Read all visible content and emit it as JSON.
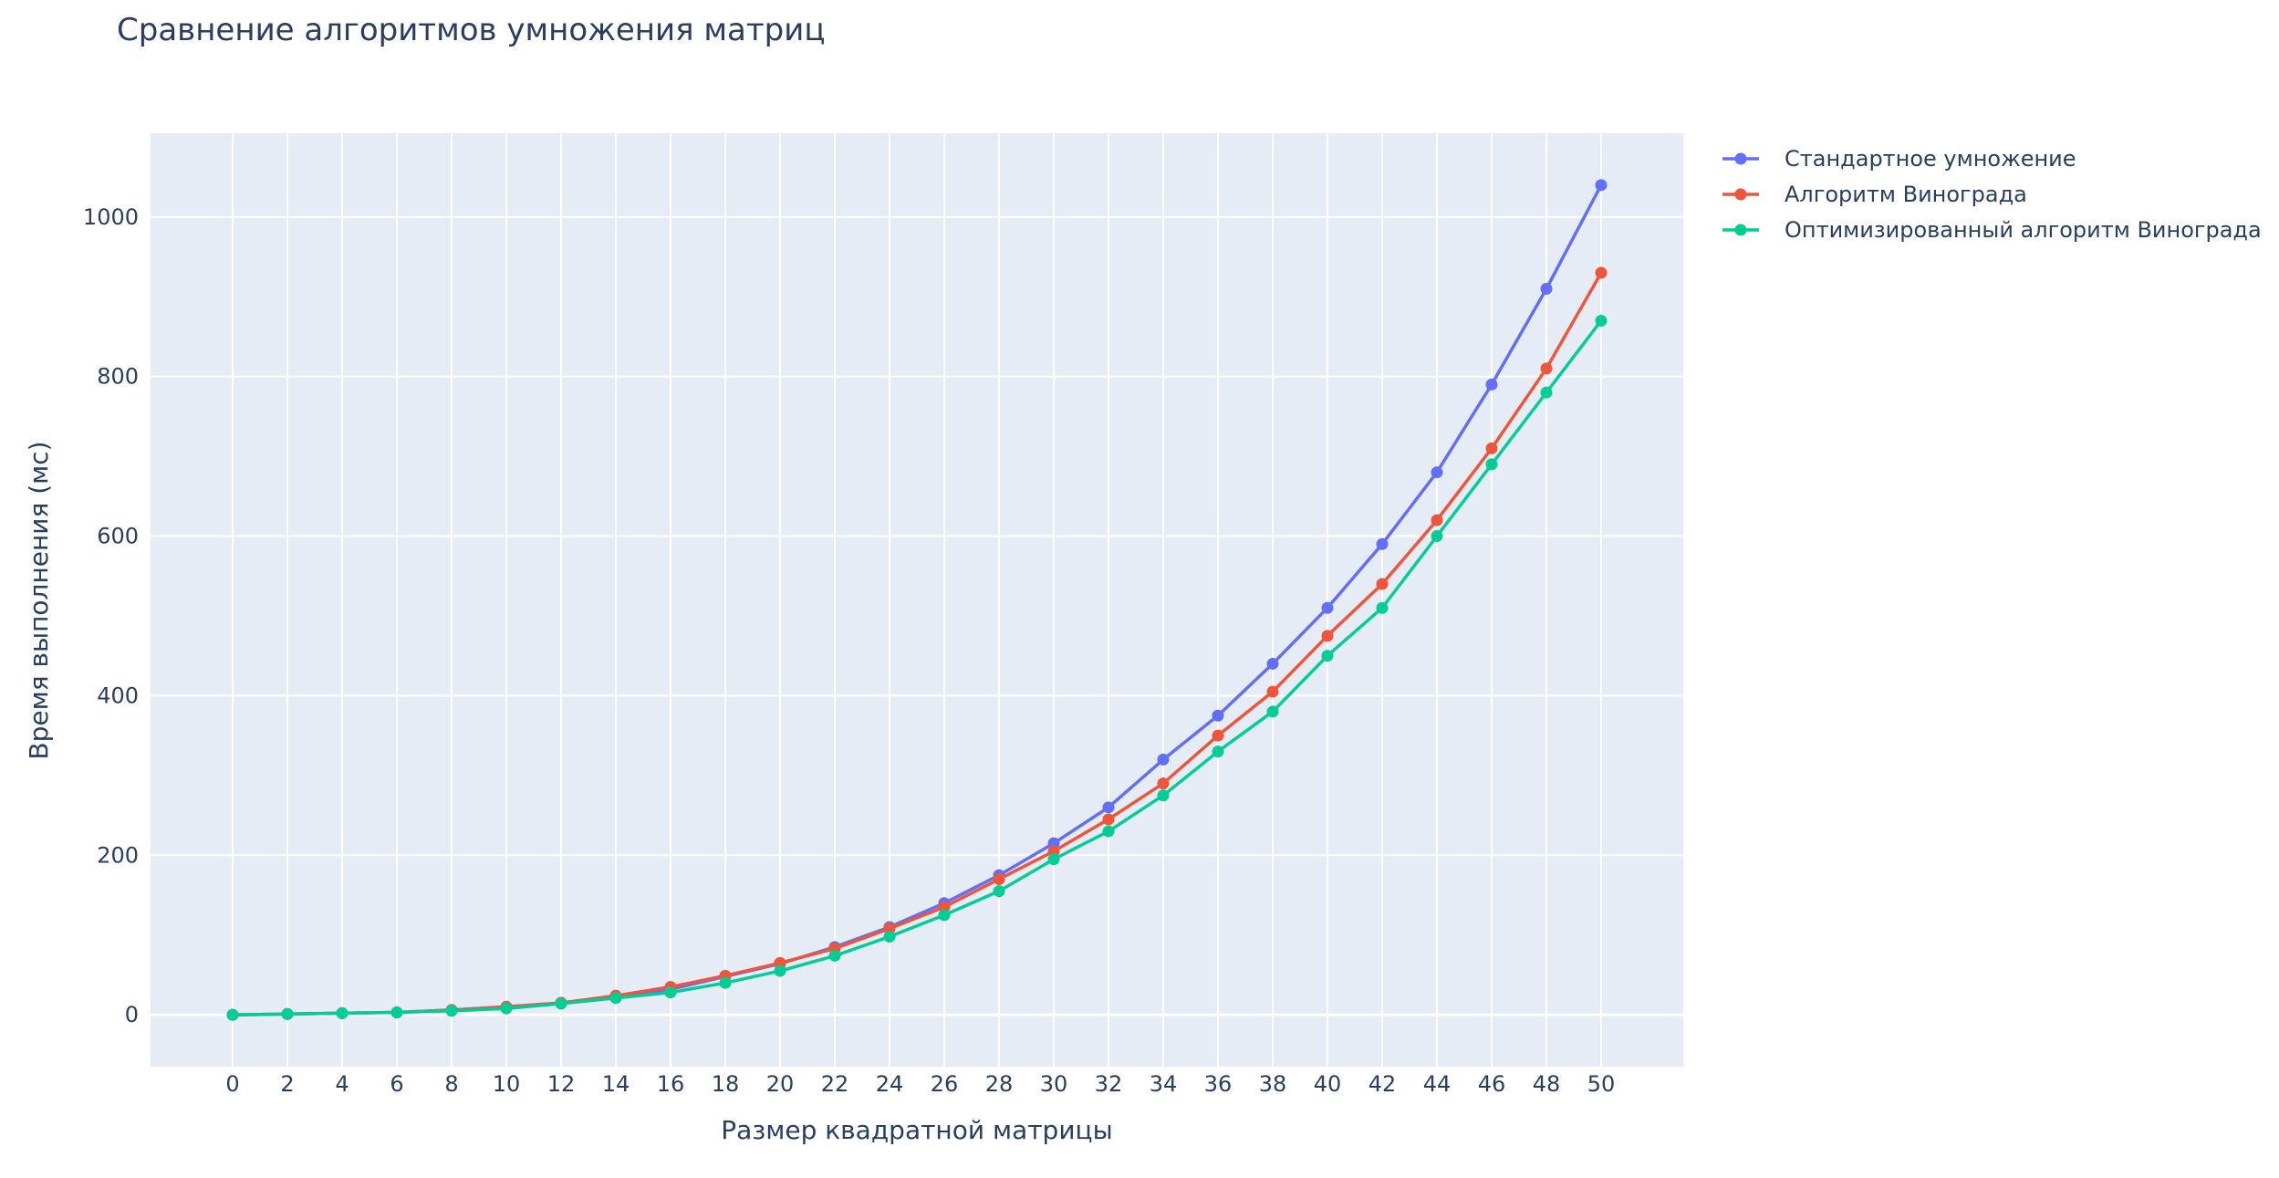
{
  "chart_data": {
    "type": "line",
    "title": "Сравнение алгоритмов умножения матриц",
    "xlabel": "Размер квадратной матрицы",
    "ylabel": "Время выполнения (мс)",
    "x": [
      0,
      2,
      4,
      6,
      8,
      10,
      12,
      14,
      16,
      18,
      20,
      22,
      24,
      26,
      28,
      30,
      32,
      34,
      36,
      38,
      40,
      42,
      44,
      46,
      48,
      50
    ],
    "xlim": [
      -3.0,
      53.0
    ],
    "ylim": [
      -65,
      1105
    ],
    "xticks": [
      0,
      2,
      4,
      6,
      8,
      10,
      12,
      14,
      16,
      18,
      20,
      22,
      24,
      26,
      28,
      30,
      32,
      34,
      36,
      38,
      40,
      42,
      44,
      46,
      48,
      50
    ],
    "yticks": [
      0,
      200,
      400,
      600,
      800,
      1000
    ],
    "grid": true,
    "legend_position": "right",
    "background": "#e5ecf6",
    "series": [
      {
        "name": "Стандартное умножение",
        "color": "#636efa",
        "values": [
          0,
          1,
          2,
          3,
          6,
          10,
          15,
          23,
          32,
          48,
          64,
          85,
          110,
          140,
          175,
          215,
          260,
          320,
          375,
          440,
          510,
          590,
          680,
          790,
          910,
          1040
        ]
      },
      {
        "name": "Алгоритм Винограда",
        "color": "#ef553b",
        "values": [
          0,
          1,
          2,
          3,
          6,
          10,
          15,
          24,
          35,
          49,
          65,
          83,
          108,
          135,
          170,
          205,
          245,
          290,
          350,
          405,
          475,
          540,
          620,
          710,
          810,
          930
        ]
      },
      {
        "name": "Оптимизированный алгоритм Винограда",
        "color": "#00cc96",
        "values": [
          0,
          1,
          2,
          3,
          5,
          8,
          14,
          21,
          28,
          40,
          55,
          74,
          98,
          125,
          155,
          195,
          230,
          275,
          330,
          380,
          450,
          510,
          600,
          690,
          780,
          870
        ]
      }
    ]
  }
}
